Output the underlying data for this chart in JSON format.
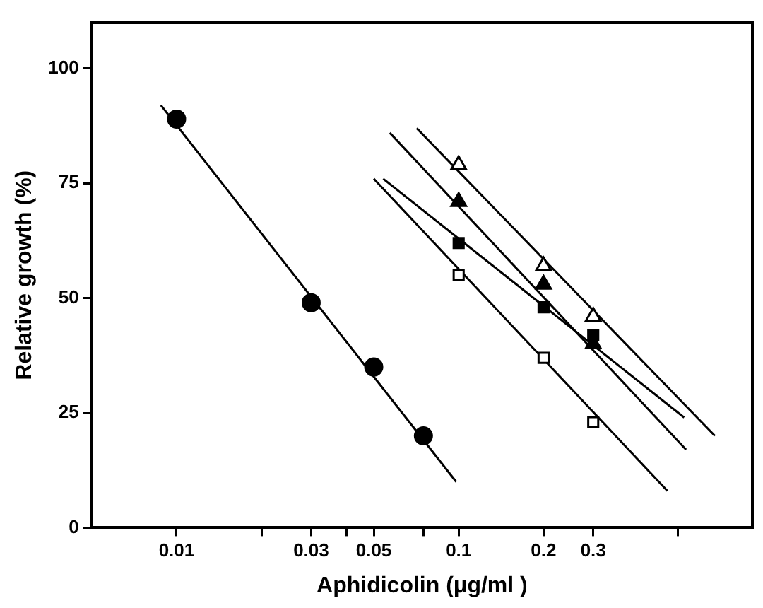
{
  "chart_data": {
    "type": "scatter",
    "xlabel": "Aphidicolin (μg/ml )",
    "ylabel": "Relative growth (%)",
    "log": "x",
    "xlim": [
      0.005,
      1.1
    ],
    "ylim": [
      0,
      110
    ],
    "xticks": [
      0.01,
      {
        "value": 0.02,
        "label": null
      },
      0.03,
      {
        "value": 0.04,
        "label": null
      },
      0.05,
      {
        "value": 0.075,
        "label": null
      },
      0.1,
      0.2,
      0.3,
      {
        "value": 0.6,
        "label": null
      }
    ],
    "yticks": [
      0,
      25,
      50,
      75,
      100
    ],
    "grid": false,
    "legend": false,
    "series": [
      {
        "marker": "circle",
        "color": "#000000",
        "x": [
          0.01,
          0.03,
          0.05,
          0.075
        ],
        "values": [
          89,
          49,
          35,
          20
        ]
      },
      {
        "marker": "triangle",
        "color": "#ffffff",
        "x": [
          0.1,
          0.2,
          0.3
        ],
        "values": [
          79,
          57,
          46
        ]
      },
      {
        "marker": "triangle",
        "color": "#000000",
        "x": [
          0.1,
          0.2,
          0.3
        ],
        "values": [
          71,
          53,
          40
        ]
      },
      {
        "marker": "square",
        "color": "#000000",
        "x": [
          0.1,
          0.2,
          0.3
        ],
        "values": [
          62,
          48,
          42
        ]
      },
      {
        "marker": "square",
        "color": "#ffffff",
        "x": [
          0.1,
          0.2,
          0.3
        ],
        "values": [
          55,
          37,
          23
        ]
      },
      {
        "type": "line",
        "marker": "none",
        "color": "#000000",
        "x": [
          0.0088,
          0.098
        ],
        "values": [
          92,
          10
        ]
      },
      {
        "type": "line",
        "marker": "none",
        "color": "#000000",
        "x": [
          0.071,
          0.81
        ],
        "values": [
          87,
          20
        ]
      },
      {
        "type": "line",
        "marker": "none",
        "color": "#000000",
        "x": [
          0.057,
          0.64
        ],
        "values": [
          86,
          17
        ]
      },
      {
        "type": "line",
        "marker": "none",
        "color": "#000000",
        "x": [
          0.054,
          0.63
        ],
        "values": [
          76,
          24
        ]
      },
      {
        "type": "line",
        "marker": "none",
        "color": "#000000",
        "x": [
          0.05,
          0.55
        ],
        "values": [
          76,
          8
        ]
      }
    ]
  }
}
